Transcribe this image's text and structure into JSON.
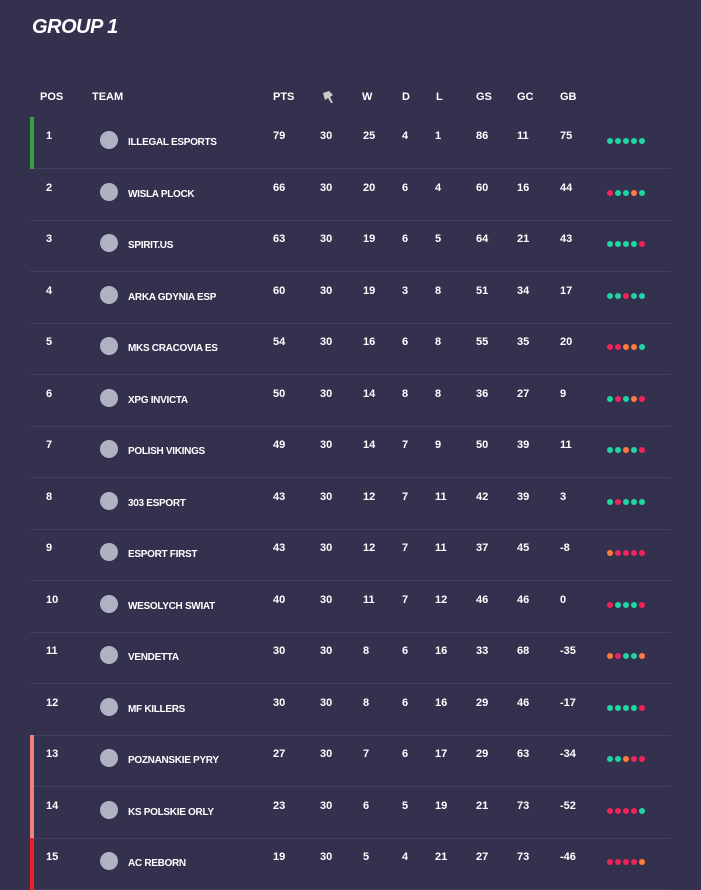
{
  "header": {
    "title": "GROUP 1"
  },
  "table": {
    "columns": {
      "pos": "POS",
      "team": "TEAM",
      "pts": "PTS",
      "w": "W",
      "d": "D",
      "l": "L",
      "gs": "GS",
      "gc": "GC",
      "gb": "GB"
    },
    "rows": [
      {
        "pos": 1,
        "team": "ILLEGAL ESPORTS",
        "pts": 79,
        "played": 30,
        "w": 25,
        "d": 4,
        "l": 1,
        "gs": 86,
        "gc": 11,
        "gb": 75,
        "form": [
          "#1fd6a2",
          "#1fd6a2",
          "#1fd6a2",
          "#1fd6a2",
          "#1fd6a2"
        ],
        "marker": "#3aa534"
      },
      {
        "pos": 2,
        "team": "WISLA PLOCK",
        "pts": 66,
        "played": 30,
        "w": 20,
        "d": 6,
        "l": 4,
        "gs": 60,
        "gc": 16,
        "gb": 44,
        "form": [
          "#f0245a",
          "#1fd6a2",
          "#1fd6a2",
          "#ff7a3d",
          "#1fd6a2"
        ]
      },
      {
        "pos": 3,
        "team": "SPIRIT.US",
        "pts": 63,
        "played": 30,
        "w": 19,
        "d": 6,
        "l": 5,
        "gs": 64,
        "gc": 21,
        "gb": 43,
        "form": [
          "#1fd6a2",
          "#1fd6a2",
          "#1fd6a2",
          "#1fd6a2",
          "#f0245a"
        ]
      },
      {
        "pos": 4,
        "team": "ARKA GDYNIA ESP",
        "pts": 60,
        "played": 30,
        "w": 19,
        "d": 3,
        "l": 8,
        "gs": 51,
        "gc": 34,
        "gb": 17,
        "form": [
          "#1fd6a2",
          "#1fd6a2",
          "#f0245a",
          "#1fd6a2",
          "#1fd6a2"
        ]
      },
      {
        "pos": 5,
        "team": "MKS CRACOVIA ES",
        "pts": 54,
        "played": 30,
        "w": 16,
        "d": 6,
        "l": 8,
        "gs": 55,
        "gc": 35,
        "gb": 20,
        "form": [
          "#f0245a",
          "#f0245a",
          "#ff7a3d",
          "#ff7a3d",
          "#1fd6a2"
        ]
      },
      {
        "pos": 6,
        "team": "XPG INVICTA",
        "pts": 50,
        "played": 30,
        "w": 14,
        "d": 8,
        "l": 8,
        "gs": 36,
        "gc": 27,
        "gb": 9,
        "form": [
          "#1fd6a2",
          "#f0245a",
          "#1fd6a2",
          "#ff7a3d",
          "#f0245a"
        ]
      },
      {
        "pos": 7,
        "team": "POLISH VIKINGS",
        "pts": 49,
        "played": 30,
        "w": 14,
        "d": 7,
        "l": 9,
        "gs": 50,
        "gc": 39,
        "gb": 11,
        "form": [
          "#1fd6a2",
          "#1fd6a2",
          "#ff7a3d",
          "#1fd6a2",
          "#f0245a"
        ]
      },
      {
        "pos": 8,
        "team": "303 ESPORT",
        "pts": 43,
        "played": 30,
        "w": 12,
        "d": 7,
        "l": 11,
        "gs": 42,
        "gc": 39,
        "gb": 3,
        "form": [
          "#1fd6a2",
          "#f0245a",
          "#1fd6a2",
          "#1fd6a2",
          "#1fd6a2"
        ]
      },
      {
        "pos": 9,
        "team": "ESPORT FIRST",
        "pts": 43,
        "played": 30,
        "w": 12,
        "d": 7,
        "l": 11,
        "gs": 37,
        "gc": 45,
        "gb": -8,
        "form": [
          "#ff7a3d",
          "#f0245a",
          "#f0245a",
          "#f0245a",
          "#f0245a"
        ]
      },
      {
        "pos": 10,
        "team": "WESOLYCH SWIAT",
        "pts": 40,
        "played": 30,
        "w": 11,
        "d": 7,
        "l": 12,
        "gs": 46,
        "gc": 46,
        "gb": 0,
        "form": [
          "#f0245a",
          "#1fd6a2",
          "#1fd6a2",
          "#1fd6a2",
          "#f0245a"
        ]
      },
      {
        "pos": 11,
        "team": "VENDETTA",
        "pts": 30,
        "played": 30,
        "w": 8,
        "d": 6,
        "l": 16,
        "gs": 33,
        "gc": 68,
        "gb": -35,
        "form": [
          "#ff7a3d",
          "#f0245a",
          "#1fd6a2",
          "#1fd6a2",
          "#ff7a3d"
        ]
      },
      {
        "pos": 12,
        "team": "MF KILLERS",
        "pts": 30,
        "played": 30,
        "w": 8,
        "d": 6,
        "l": 16,
        "gs": 29,
        "gc": 46,
        "gb": -17,
        "form": [
          "#1fd6a2",
          "#1fd6a2",
          "#1fd6a2",
          "#1fd6a2",
          "#f0245a"
        ]
      },
      {
        "pos": 13,
        "team": "POZNANSKIE PYRY",
        "pts": 27,
        "played": 30,
        "w": 7,
        "d": 6,
        "l": 17,
        "gs": 29,
        "gc": 63,
        "gb": -34,
        "form": [
          "#1fd6a2",
          "#1fd6a2",
          "#ff7a3d",
          "#f0245a",
          "#f0245a"
        ],
        "marker": "#f08080"
      },
      {
        "pos": 14,
        "team": "KS POLSKIE ORLY",
        "pts": 23,
        "played": 30,
        "w": 6,
        "d": 5,
        "l": 19,
        "gs": 21,
        "gc": 73,
        "gb": -52,
        "form": [
          "#f0245a",
          "#f0245a",
          "#f0245a",
          "#f0245a",
          "#1fd6a2"
        ],
        "marker": "#f08080"
      },
      {
        "pos": 15,
        "team": "AC REBORN",
        "pts": 19,
        "played": 30,
        "w": 5,
        "d": 4,
        "l": 21,
        "gs": 27,
        "gc": 73,
        "gb": -46,
        "form": [
          "#f0245a",
          "#f0245a",
          "#f0245a",
          "#f0245a",
          "#ff7a3d"
        ],
        "marker": "#e8202a"
      }
    ]
  }
}
